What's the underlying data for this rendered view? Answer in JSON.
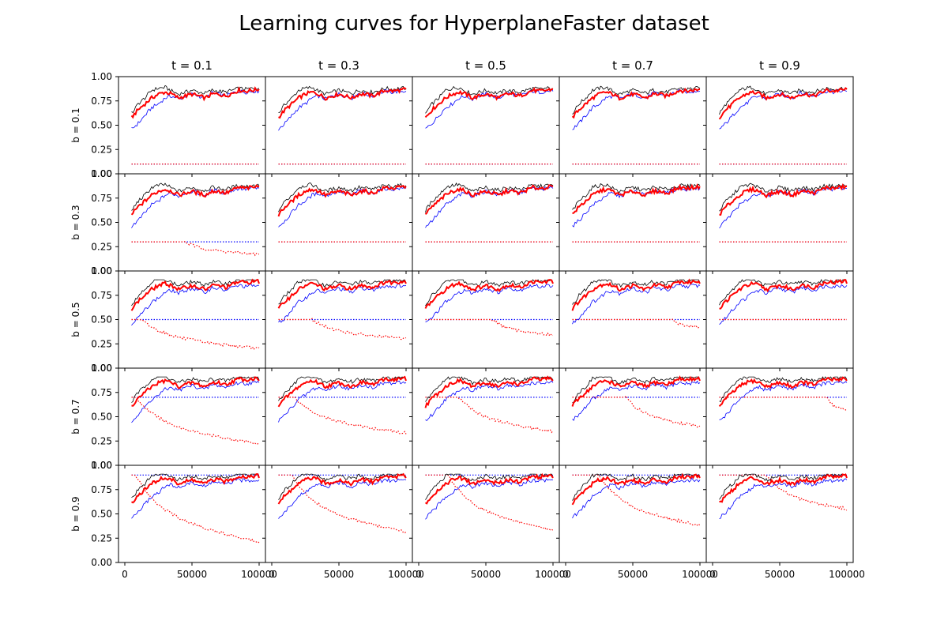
{
  "chart_data": {
    "type": "line",
    "title": "Learning curves for HyperplaneFaster dataset",
    "col_labels": [
      "t = 0.1",
      "t = 0.3",
      "t = 0.5",
      "t = 0.7",
      "t = 0.9"
    ],
    "row_labels": [
      "b = 0.1",
      "b = 0.3",
      "b = 0.5",
      "b = 0.7",
      "b = 0.9"
    ],
    "t_values": [
      0.1,
      0.3,
      0.5,
      0.7,
      0.9
    ],
    "b_values": [
      0.1,
      0.3,
      0.5,
      0.7,
      0.9
    ],
    "xlim": [
      0,
      100000
    ],
    "ylim": [
      0,
      1
    ],
    "xticks": [
      0,
      50000,
      100000
    ],
    "xtick_labels": [
      "0",
      "50000",
      "100000"
    ],
    "yticks": [
      0,
      0.25,
      0.5,
      0.75,
      1.0
    ],
    "ytick_labels": [
      "0.00",
      "0.25",
      "0.50",
      "0.75",
      "1.00"
    ],
    "grid": false,
    "legend": "none",
    "series_styles": [
      {
        "key": "black",
        "color": "#000000",
        "style": "solid",
        "width": "thin"
      },
      {
        "key": "blue",
        "color": "#0000ff",
        "style": "solid",
        "width": "thin"
      },
      {
        "key": "red",
        "color": "#ff0000",
        "style": "solid",
        "width": "thick"
      },
      {
        "key": "blue_dotted",
        "color": "#0000ff",
        "style": "dotted"
      },
      {
        "key": "red_dotted",
        "color": "#ff0000",
        "style": "dotted"
      }
    ],
    "x_samples": [
      5000,
      10000,
      15000,
      20000,
      25000,
      30000,
      35000,
      40000,
      45000,
      50000,
      55000,
      60000,
      65000,
      70000,
      75000,
      80000,
      85000,
      90000,
      95000,
      100000
    ],
    "base_curves": {
      "black": [
        0.62,
        0.72,
        0.78,
        0.86,
        0.88,
        0.89,
        0.85,
        0.82,
        0.84,
        0.86,
        0.84,
        0.83,
        0.86,
        0.85,
        0.84,
        0.86,
        0.88,
        0.87,
        0.88,
        0.88
      ],
      "blue": [
        0.46,
        0.52,
        0.6,
        0.68,
        0.72,
        0.78,
        0.8,
        0.77,
        0.8,
        0.82,
        0.8,
        0.78,
        0.83,
        0.82,
        0.8,
        0.83,
        0.85,
        0.84,
        0.85,
        0.85
      ],
      "red": [
        0.58,
        0.66,
        0.72,
        0.78,
        0.82,
        0.84,
        0.82,
        0.78,
        0.8,
        0.82,
        0.8,
        0.78,
        0.82,
        0.82,
        0.8,
        0.83,
        0.86,
        0.85,
        0.86,
        0.87
      ]
    },
    "red_dotted_drop": {
      "description": "Red dotted curve starts at b and, when b > t, decays toward a floor after a drop point",
      "cells": [
        {
          "b": 0.3,
          "t": 0.1,
          "drop_x": 45000,
          "end": 0.17
        },
        {
          "b": 0.5,
          "t": 0.1,
          "drop_x": 12000,
          "end": 0.2
        },
        {
          "b": 0.5,
          "t": 0.3,
          "drop_x": 30000,
          "end": 0.3
        },
        {
          "b": 0.5,
          "t": 0.5,
          "drop_x": 55000,
          "end": 0.34
        },
        {
          "b": 0.5,
          "t": 0.7,
          "drop_x": 80000,
          "end": 0.42
        },
        {
          "b": 0.7,
          "t": 0.1,
          "drop_x": 8000,
          "end": 0.22
        },
        {
          "b": 0.7,
          "t": 0.3,
          "drop_x": 17000,
          "end": 0.33
        },
        {
          "b": 0.7,
          "t": 0.5,
          "drop_x": 30000,
          "end": 0.35
        },
        {
          "b": 0.7,
          "t": 0.7,
          "drop_x": 45000,
          "end": 0.4
        },
        {
          "b": 0.7,
          "t": 0.9,
          "drop_x": 85000,
          "end": 0.56
        },
        {
          "b": 0.9,
          "t": 0.1,
          "drop_x": 8000,
          "end": 0.21
        },
        {
          "b": 0.9,
          "t": 0.3,
          "drop_x": 15000,
          "end": 0.31
        },
        {
          "b": 0.9,
          "t": 0.5,
          "drop_x": 22000,
          "end": 0.33
        },
        {
          "b": 0.9,
          "t": 0.7,
          "drop_x": 25000,
          "end": 0.38
        },
        {
          "b": 0.9,
          "t": 0.9,
          "drop_x": 40000,
          "end": 0.55
        }
      ]
    }
  }
}
